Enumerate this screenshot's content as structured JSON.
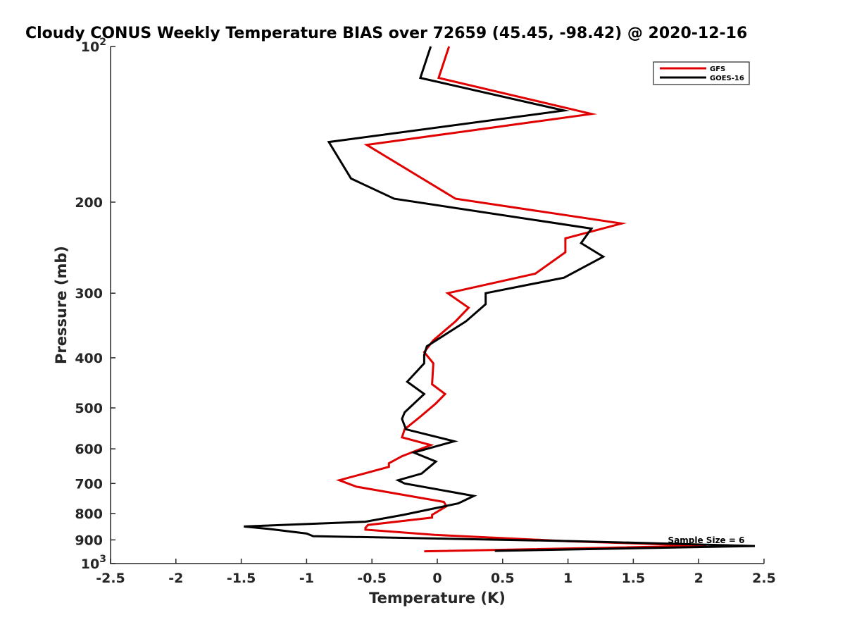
{
  "chart_data": {
    "type": "line",
    "title": "Cloudy CONUS Weekly Temperature BIAS over 72659 (45.45, -98.42) @ 2020-12-16",
    "xlabel": "Temperature (K)",
    "ylabel": "Pressure (mb)",
    "xlim": [
      -2.5,
      2.5
    ],
    "ylim": [
      100,
      1000
    ],
    "yscale": "log",
    "y_reversed": true,
    "x_ticks": [
      "-2.5",
      "-2",
      "-1.5",
      "-1",
      "-0.5",
      "0",
      "0.5",
      "1",
      "1.5",
      "2",
      "2.5"
    ],
    "y_ticks": [
      {
        "value": 100,
        "base": "10",
        "exp": "2"
      },
      {
        "value": 200,
        "base": "200",
        "exp": ""
      },
      {
        "value": 300,
        "base": "300",
        "exp": ""
      },
      {
        "value": 400,
        "base": "400",
        "exp": ""
      },
      {
        "value": 500,
        "base": "500",
        "exp": ""
      },
      {
        "value": 600,
        "base": "600",
        "exp": ""
      },
      {
        "value": 700,
        "base": "700",
        "exp": ""
      },
      {
        "value": 800,
        "base": "800",
        "exp": ""
      },
      {
        "value": 900,
        "base": "900",
        "exp": ""
      },
      {
        "value": 1000,
        "base": "10",
        "exp": "3"
      }
    ],
    "grid": false,
    "legend": "top-right",
    "annotation": "Sample Size = 6",
    "series": [
      {
        "name": "GFS",
        "color": "#e00000",
        "points": [
          [
            0.09,
            100
          ],
          [
            0.01,
            115
          ],
          [
            1.18,
            135
          ],
          [
            -0.54,
            155
          ],
          [
            0.14,
            197
          ],
          [
            1.41,
            220
          ],
          [
            0.98,
            235
          ],
          [
            0.98,
            250
          ],
          [
            0.75,
            275
          ],
          [
            0.08,
            300
          ],
          [
            0.24,
            320
          ],
          [
            0.14,
            340
          ],
          [
            -0.03,
            370
          ],
          [
            -0.1,
            390
          ],
          [
            -0.03,
            410
          ],
          [
            -0.04,
            450
          ],
          [
            0.06,
            470
          ],
          [
            -0.01,
            490
          ],
          [
            -0.13,
            520
          ],
          [
            -0.25,
            550
          ],
          [
            -0.27,
            570
          ],
          [
            -0.05,
            590
          ],
          [
            -0.27,
            620
          ],
          [
            -0.37,
            640
          ],
          [
            -0.37,
            650
          ],
          [
            -0.75,
            690
          ],
          [
            -0.62,
            710
          ],
          [
            0.05,
            760
          ],
          [
            0.07,
            775
          ],
          [
            -0.04,
            805
          ],
          [
            -0.04,
            815
          ],
          [
            -0.53,
            842
          ],
          [
            -0.55,
            853
          ],
          [
            -0.55,
            860
          ],
          [
            -0.02,
            880
          ],
          [
            0.99,
            905
          ],
          [
            2.06,
            924
          ],
          [
            -0.1,
            947
          ]
        ]
      },
      {
        "name": "GOES-16",
        "color": "#000000",
        "points": [
          [
            -0.05,
            100
          ],
          [
            -0.13,
            115
          ],
          [
            0.97,
            133
          ],
          [
            -0.83,
            153
          ],
          [
            -0.66,
            180
          ],
          [
            -0.33,
            197
          ],
          [
            1.18,
            225
          ],
          [
            1.1,
            240
          ],
          [
            1.27,
            255
          ],
          [
            0.97,
            280
          ],
          [
            0.37,
            300
          ],
          [
            0.37,
            315
          ],
          [
            0.22,
            340
          ],
          [
            -0.08,
            380
          ],
          [
            -0.1,
            395
          ],
          [
            -0.1,
            410
          ],
          [
            -0.23,
            445
          ],
          [
            -0.1,
            470
          ],
          [
            -0.25,
            510
          ],
          [
            -0.27,
            525
          ],
          [
            -0.24,
            550
          ],
          [
            0.13,
            580
          ],
          [
            -0.18,
            610
          ],
          [
            -0.01,
            635
          ],
          [
            -0.12,
            670
          ],
          [
            -0.3,
            690
          ],
          [
            -0.25,
            700
          ],
          [
            0.28,
            740
          ],
          [
            0.16,
            765
          ],
          [
            -0.26,
            805
          ],
          [
            -0.55,
            830
          ],
          [
            -1.48,
            848
          ],
          [
            -1.27,
            858
          ],
          [
            -1.0,
            875
          ],
          [
            -0.95,
            885
          ],
          [
            1.05,
            905
          ],
          [
            2.43,
            925
          ],
          [
            0.44,
            945
          ]
        ]
      }
    ]
  }
}
